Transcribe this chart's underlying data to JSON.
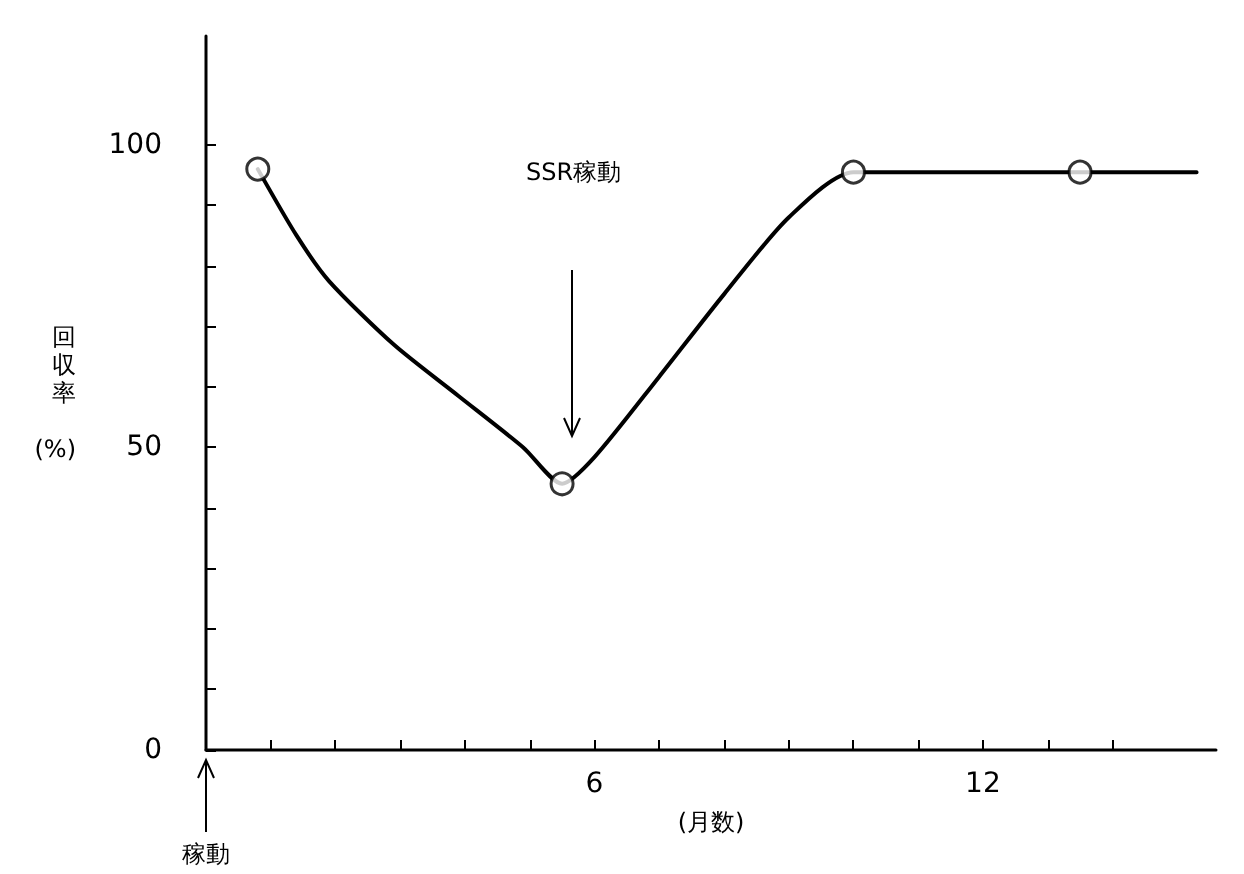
{
  "chart_data": {
    "type": "line",
    "xlabel": "(月数)",
    "ylabel": "回収率 (%)",
    "xlim": [
      0,
      15.6
    ],
    "ylim": [
      0,
      118
    ],
    "xticks": [
      {
        "value": 1,
        "label": null
      },
      {
        "value": 2,
        "label": null
      },
      {
        "value": 3,
        "label": null
      },
      {
        "value": 4,
        "label": null
      },
      {
        "value": 5,
        "label": null
      },
      6,
      {
        "value": 7,
        "label": null
      },
      {
        "value": 8,
        "label": null
      },
      {
        "value": 9,
        "label": null
      },
      {
        "value": 10,
        "label": null
      },
      {
        "value": 11,
        "label": null
      },
      12,
      {
        "value": 13,
        "label": null
      },
      {
        "value": 14,
        "label": null
      }
    ],
    "yticks": [
      0,
      {
        "value": 10,
        "label": null
      },
      {
        "value": 20,
        "label": null
      },
      {
        "value": 30,
        "label": null
      },
      {
        "value": 40,
        "label": null
      },
      50,
      {
        "value": 60,
        "label": null
      },
      {
        "value": 70,
        "label": null
      },
      {
        "value": 80,
        "label": null
      },
      {
        "value": 90,
        "label": null
      },
      100
    ],
    "grid": false,
    "series": [
      {
        "marker": "none",
        "color": "#000000",
        "x": [
          0.8,
          1.4,
          1.9,
          2.9,
          3.9,
          4.9,
          5.5,
          6.0,
          7.0,
          8.0,
          9.0,
          10.0,
          13.5,
          15.3
        ],
        "values": [
          96,
          85,
          77.5,
          67,
          58.5,
          50,
          44,
          48.4,
          61.7,
          75.3,
          88,
          95.5,
          95.5,
          95.5
        ]
      },
      {
        "type": "scatter",
        "marker": "circle",
        "color": "#000000",
        "x": [
          0.8,
          5.5,
          10.0,
          13.5
        ],
        "values": [
          96,
          44,
          95.5,
          95.5
        ]
      }
    ],
    "annotations": [
      "SSR稼動",
      "稼動"
    ]
  }
}
